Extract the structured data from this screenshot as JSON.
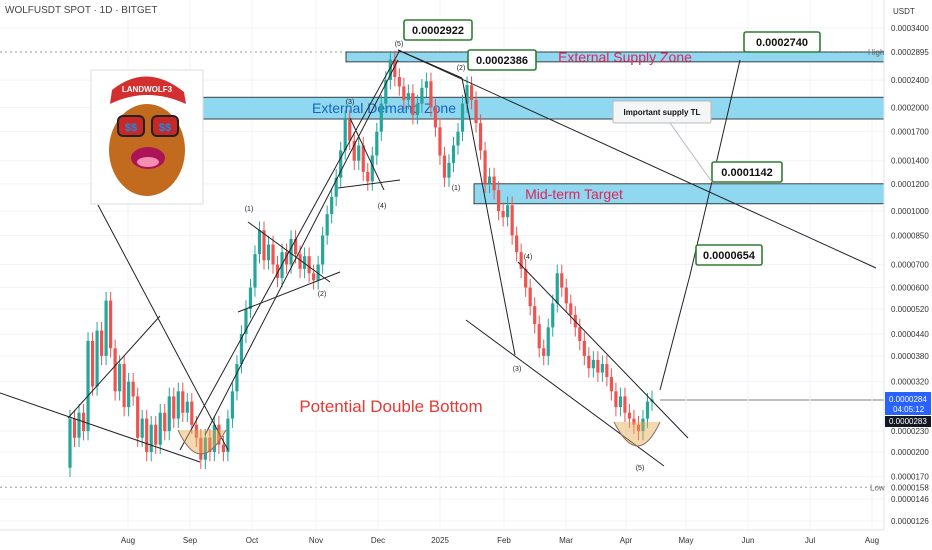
{
  "header": {
    "symbol_line": "WOLFUSDT SPOT · 1D · BITGET"
  },
  "colors": {
    "up": "#26a69a",
    "down": "#ef5350",
    "zone_fill": "#8fd8f0",
    "zone_stroke": "#1a1a1a",
    "zone_text": "#e0245e",
    "demand_text": "#1565c0",
    "dbl_text": "#e53935",
    "line": "#222222",
    "price_tag": "#2962ff",
    "axis_text": "#333333",
    "grid": "#f0f3fa"
  },
  "chart_data": {
    "type": "candlestick",
    "scale": "log",
    "price_axis": {
      "currency": "USDT",
      "ticks": [
        "0.0003400",
        "0.0002895",
        "0.0002400",
        "0.0002000",
        "0.0001700",
        "0.0001400",
        "0.0001200",
        "0.0001000",
        "0.0000850",
        "0.0000700",
        "0.0000600",
        "0.0000520",
        "0.0000440",
        "0.0000380",
        "0.0000320",
        "0.0000284",
        "0.0000283",
        "0.0000230",
        "0.0000200",
        "0.0000170",
        "0.0000158",
        "0.0000146",
        "0.0000126"
      ],
      "high_label": "High",
      "high_value": "0.0002895",
      "low_label": "Low",
      "low_value": "0.0000158",
      "current_price": "0.0000284",
      "countdown": "04:05:12",
      "prev_close": "0.0000283"
    },
    "time_axis": {
      "labels": [
        "Aug",
        "Sep",
        "Oct",
        "Nov",
        "Dec",
        "2025",
        "Feb",
        "Mar",
        "Apr",
        "May",
        "Jun",
        "Jul",
        "Aug"
      ]
    },
    "candles": [
      [
        1.8,
        2.5
      ],
      [
        2.5,
        2.2
      ],
      [
        2.2,
        2.6
      ],
      [
        2.6,
        2.3
      ],
      [
        2.3,
        4.2
      ],
      [
        4.2,
        3.1
      ],
      [
        3.1,
        4.5
      ],
      [
        4.5,
        3.8
      ],
      [
        3.8,
        5.5
      ],
      [
        5.5,
        4.0
      ],
      [
        4.0,
        3.0
      ],
      [
        3.0,
        3.6
      ],
      [
        3.6,
        2.7
      ],
      [
        2.7,
        3.2
      ],
      [
        3.2,
        2.9
      ],
      [
        2.9,
        2.2
      ],
      [
        2.2,
        2.5
      ],
      [
        2.5,
        2.0
      ],
      [
        2.0,
        2.4
      ],
      [
        2.4,
        2.1
      ],
      [
        2.1,
        2.6
      ],
      [
        2.6,
        2.3
      ],
      [
        2.3,
        2.9
      ],
      [
        2.9,
        2.5
      ],
      [
        2.5,
        3.0
      ],
      [
        3.0,
        2.6
      ],
      [
        2.6,
        2.8
      ],
      [
        2.8,
        2.4
      ],
      [
        2.4,
        2.2
      ],
      [
        2.2,
        1.9
      ],
      [
        1.9,
        2.2
      ],
      [
        2.2,
        2.0
      ],
      [
        2.0,
        2.4
      ],
      [
        2.4,
        2.1
      ],
      [
        2.1,
        2.0
      ],
      [
        2.0,
        2.5
      ],
      [
        2.5,
        3.0
      ],
      [
        3.0,
        3.6
      ],
      [
        3.6,
        4.4
      ],
      [
        4.4,
        5.2
      ],
      [
        5.2,
        6.0
      ],
      [
        6.0,
        7.5
      ],
      [
        7.5,
        8.8
      ],
      [
        8.8,
        7.2
      ],
      [
        7.2,
        8.0
      ],
      [
        8.0,
        7.0
      ],
      [
        7.0,
        6.4
      ],
      [
        6.4,
        7.6
      ],
      [
        7.6,
        7.0
      ],
      [
        7.0,
        8.3
      ],
      [
        8.3,
        7.5
      ],
      [
        7.5,
        6.8
      ],
      [
        6.8,
        7.4
      ],
      [
        7.4,
        6.6
      ],
      [
        6.6,
        6.3
      ],
      [
        6.3,
        7.0
      ],
      [
        7.0,
        8.5
      ],
      [
        8.5,
        9.8
      ],
      [
        9.8,
        11.0
      ],
      [
        11.0,
        12.5
      ],
      [
        12.5,
        15.0
      ],
      [
        15.0,
        18.5
      ],
      [
        18.5,
        16.0
      ],
      [
        16.0,
        14.0
      ],
      [
        14.0,
        15.5
      ],
      [
        15.5,
        13.0
      ],
      [
        13.0,
        12.2
      ],
      [
        12.2,
        14.5
      ],
      [
        14.5,
        17.0
      ],
      [
        17.0,
        20.5
      ],
      [
        20.5,
        24.0
      ],
      [
        24.0,
        27.5
      ],
      [
        27.5,
        24.5
      ],
      [
        24.5,
        23.0
      ],
      [
        23.0,
        21.0
      ],
      [
        21.0,
        22.0
      ],
      [
        22.0,
        19.0
      ],
      [
        19.0,
        20.5
      ],
      [
        20.5,
        22.8
      ],
      [
        22.8,
        23.8
      ],
      [
        23.8,
        20.0
      ],
      [
        20.0,
        17.5
      ],
      [
        17.5,
        14.5
      ],
      [
        14.5,
        12.5
      ],
      [
        12.5,
        13.8
      ],
      [
        13.8,
        15.5
      ],
      [
        15.5,
        17.0
      ],
      [
        17.0,
        20.5
      ],
      [
        20.5,
        23.2
      ],
      [
        23.2,
        21.0
      ],
      [
        21.0,
        18.0
      ],
      [
        18.0,
        15.0
      ],
      [
        15.0,
        12.0
      ],
      [
        12.0,
        12.6
      ],
      [
        12.6,
        11.5
      ],
      [
        11.5,
        10.0
      ],
      [
        10.0,
        9.6
      ],
      [
        9.6,
        10.4
      ],
      [
        10.4,
        8.5
      ],
      [
        8.5,
        7.6
      ],
      [
        7.6,
        6.8
      ],
      [
        6.8,
        6.0
      ],
      [
        6.0,
        5.3
      ],
      [
        5.3,
        4.7
      ],
      [
        4.7,
        4.0
      ],
      [
        4.0,
        3.8
      ],
      [
        3.8,
        4.6
      ],
      [
        4.6,
        5.4
      ],
      [
        5.4,
        6.6
      ],
      [
        6.6,
        6.0
      ],
      [
        6.0,
        5.4
      ],
      [
        5.4,
        5.0
      ],
      [
        5.0,
        4.6
      ],
      [
        4.6,
        4.2
      ],
      [
        4.2,
        3.8
      ],
      [
        3.8,
        3.5
      ],
      [
        3.5,
        3.7
      ],
      [
        3.7,
        3.4
      ],
      [
        3.4,
        3.6
      ],
      [
        3.6,
        3.3
      ],
      [
        3.3,
        3.0
      ],
      [
        3.0,
        2.7
      ],
      [
        2.7,
        2.9
      ],
      [
        2.9,
        2.6
      ],
      [
        2.6,
        2.5
      ],
      [
        2.5,
        2.4
      ],
      [
        2.4,
        2.3
      ],
      [
        2.3,
        2.5
      ],
      [
        2.5,
        2.8
      ],
      [
        2.8,
        2.84
      ]
    ],
    "candle_unit": "price × 1e-5",
    "wave_labels": [
      "(1)",
      "(2)",
      "(3)",
      "(4)",
      "(5)",
      "(1)",
      "(2)",
      "(3)",
      "(4)",
      "(5)",
      "(1)",
      "(2)",
      "(3)",
      "(4)",
      "(5)"
    ],
    "zones": [
      {
        "name": "External Supply Zone",
        "low": 0.000271,
        "high": 0.0002895
      },
      {
        "name": "Mid-term Target",
        "low": 0.000105,
        "high": 0.00012
      },
      {
        "name": "External Demand Zone",
        "low": 0.000185,
        "high": 0.000214
      }
    ],
    "annotations": [
      {
        "text": "0.0002922"
      },
      {
        "text": "0.0002386"
      },
      {
        "text": "0.0002740"
      },
      {
        "text": "0.0001142"
      },
      {
        "text": "0.0000654"
      },
      {
        "text": "Important supply TL"
      },
      {
        "text": "Potential Double Bottom"
      }
    ]
  },
  "logo": {
    "text": "LANDWOLF3"
  }
}
